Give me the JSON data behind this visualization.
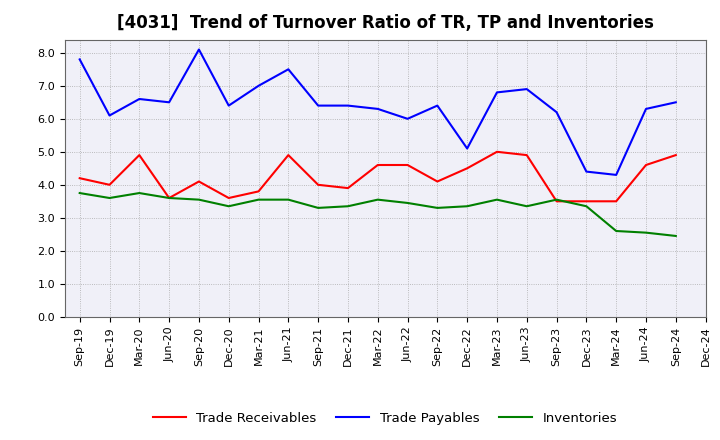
{
  "title": "[4031]  Trend of Turnover Ratio of TR, TP and Inventories",
  "x_labels": [
    "Sep-19",
    "Dec-19",
    "Mar-20",
    "Jun-20",
    "Sep-20",
    "Dec-20",
    "Mar-21",
    "Jun-21",
    "Sep-21",
    "Dec-21",
    "Mar-22",
    "Jun-22",
    "Sep-22",
    "Dec-22",
    "Mar-23",
    "Jun-23",
    "Sep-23",
    "Dec-23",
    "Mar-24",
    "Jun-24",
    "Sep-24",
    "Dec-24"
  ],
  "trade_receivables": [
    4.2,
    4.0,
    4.9,
    3.6,
    4.1,
    3.6,
    3.8,
    4.9,
    4.0,
    3.9,
    4.6,
    4.6,
    4.1,
    4.5,
    5.0,
    4.9,
    3.5,
    3.5,
    3.5,
    4.6,
    4.9,
    null
  ],
  "trade_payables": [
    7.8,
    6.1,
    6.6,
    6.5,
    8.1,
    6.4,
    7.0,
    7.5,
    6.4,
    6.4,
    6.3,
    6.0,
    6.4,
    5.1,
    6.8,
    6.9,
    6.2,
    4.4,
    4.3,
    6.3,
    6.5,
    null
  ],
  "inventories": [
    3.75,
    3.6,
    3.75,
    3.6,
    3.55,
    3.35,
    3.55,
    3.55,
    3.3,
    3.35,
    3.55,
    3.45,
    3.3,
    3.35,
    3.55,
    3.35,
    3.55,
    3.35,
    2.6,
    2.55,
    2.45,
    null
  ],
  "ylim": [
    0.0,
    8.4
  ],
  "yticks": [
    0.0,
    1.0,
    2.0,
    3.0,
    4.0,
    5.0,
    6.0,
    7.0,
    8.0
  ],
  "line_colors": {
    "trade_receivables": "#ff0000",
    "trade_payables": "#0000ff",
    "inventories": "#008000"
  },
  "legend_labels": [
    "Trade Receivables",
    "Trade Payables",
    "Inventories"
  ],
  "background_color": "#ffffff",
  "plot_background": "#f0f0f8",
  "grid_color": "#aaaaaa",
  "title_fontsize": 12,
  "tick_fontsize": 8,
  "legend_fontsize": 9.5
}
